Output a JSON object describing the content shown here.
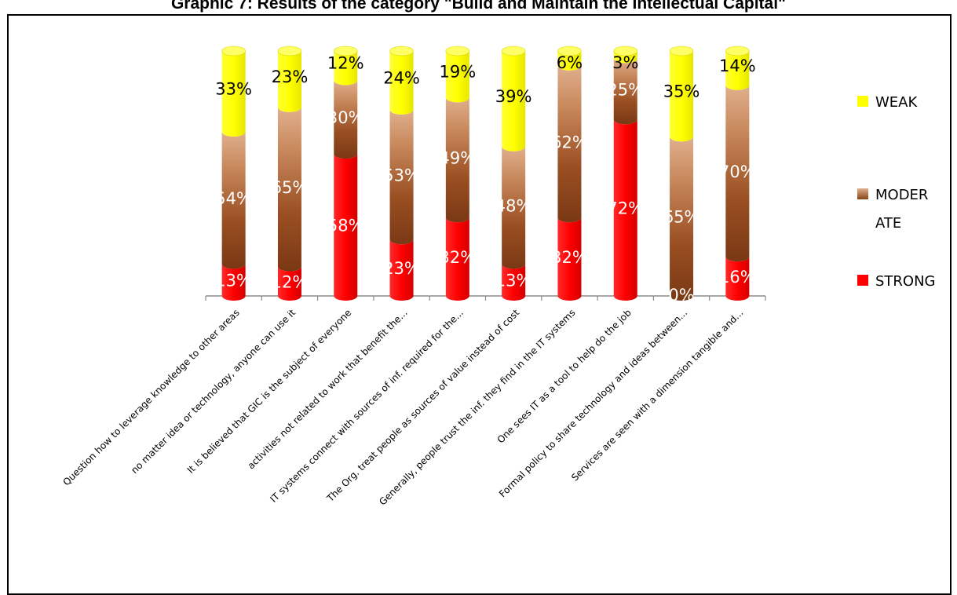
{
  "title": "Graphic 7: Results of the category \"Build and Maintain the Intellectual Capital\"",
  "chart_data": {
    "type": "bar",
    "stacked": true,
    "percent": true,
    "categories": [
      "Question how to leverage knowledge to other areas",
      "no matter idea or technology, anyone can use it",
      "It is believed that GIC is the subject of everyone",
      "activities not related to work that benefit the...",
      "IT systems connect with sources of inf. required for the...",
      "The Org. treat people as sources of value instead of cost",
      "Generally, people trust the inf. they find in the IT systems",
      "One sees IT as a tool to help do the job",
      "Formal policy to share technology and ideas between...",
      "Services are seen with a dimension tangible and..."
    ],
    "series": [
      {
        "name": "STRONG",
        "color": "#ff0000",
        "values": [
          13,
          12,
          58,
          23,
          32,
          13,
          32,
          72,
          0,
          16
        ]
      },
      {
        "name": "MODER ATE",
        "color": "#a0522d",
        "values": [
          54,
          65,
          30,
          53,
          49,
          48,
          62,
          25,
          65,
          70
        ]
      },
      {
        "name": "WEAK",
        "color": "#ffff00",
        "values": [
          33,
          23,
          12,
          24,
          19,
          39,
          6,
          3,
          35,
          14
        ]
      }
    ],
    "series_labels": [
      [
        "13%",
        "12%",
        "58%",
        "23%",
        "32%",
        "13%",
        "32%",
        "72%",
        "0%",
        "16%"
      ],
      [
        "54%",
        "65%",
        "30%",
        "53%",
        "49%",
        "48%",
        "62%",
        "25%",
        "65%",
        "70%"
      ],
      [
        "33%",
        "23%",
        "12%",
        "24%",
        "19%",
        "39%",
        "6%",
        "3%",
        "35%",
        "14%"
      ]
    ],
    "ylim": [
      0,
      100
    ],
    "legend": {
      "position": "right",
      "entries": [
        {
          "name": "WEAK",
          "color": "#ffff00"
        },
        {
          "name": "MODER ATE",
          "color": "#a0522d"
        },
        {
          "name": "STRONG",
          "color": "#ff0000"
        }
      ]
    },
    "grid": false,
    "xlabel": "",
    "ylabel": ""
  }
}
